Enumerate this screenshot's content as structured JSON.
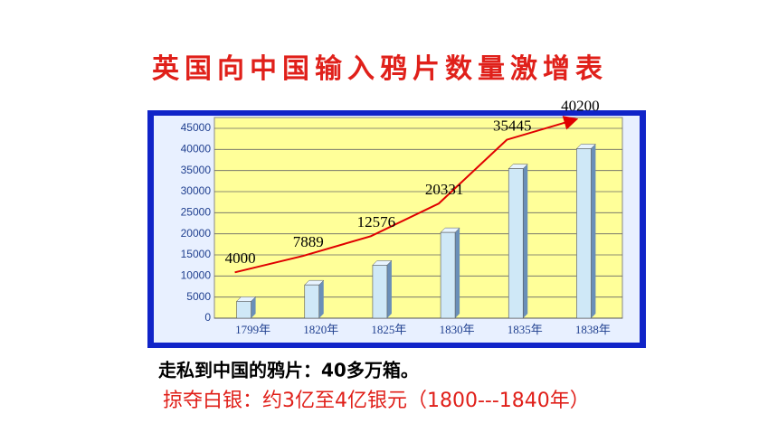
{
  "chart_data": {
    "type": "bar",
    "title": "英国向中国输入鸦片数量激增表",
    "categories": [
      "1799年",
      "1820年",
      "1825年",
      "1830年",
      "1835年",
      "1838年"
    ],
    "values": [
      4000,
      7889,
      12576,
      20331,
      35445,
      40200
    ],
    "color": "#cfe8f7",
    "line_color": "#e00000",
    "ylim": [
      0,
      45000
    ],
    "yticks": [
      0,
      5000,
      10000,
      15000,
      20000,
      25000,
      30000,
      35000,
      40000,
      45000
    ],
    "grid": true
  },
  "notes": [
    "走私到中国的鸦片：40多万箱。",
    "掠夺白银：约3亿至4亿银元（1800---1840年）"
  ]
}
